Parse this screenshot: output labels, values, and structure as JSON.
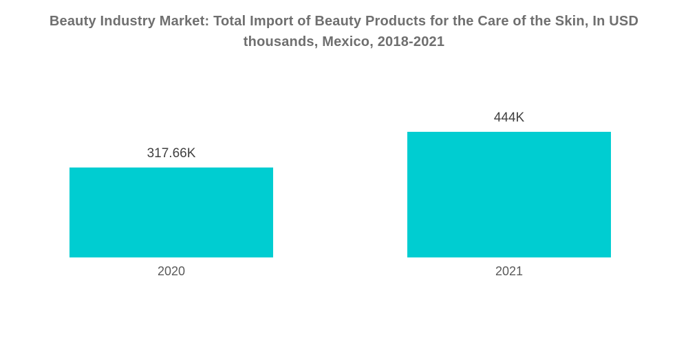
{
  "chart_data": {
    "type": "bar",
    "title": "Beauty Industry Market: Total Import of Beauty Products for the Care of the Skin, In USD thousands, Mexico, 2018-2021",
    "categories": [
      "2020",
      "2021"
    ],
    "values": [
      317.66,
      444
    ],
    "value_labels": [
      "317.66K",
      "444K"
    ],
    "unit": "USD thousands",
    "ylim": [
      0,
      444
    ],
    "xlabel": "",
    "ylabel": "",
    "grid": false,
    "legend_position": "none",
    "bar_color": "#00CDD1"
  },
  "colors": {
    "bar": "#00CDD1",
    "title_text": "#6F6F6F",
    "value_label_text": "#3F3F3F",
    "axis_label_text": "#595959",
    "background": "#FFFFFF"
  }
}
